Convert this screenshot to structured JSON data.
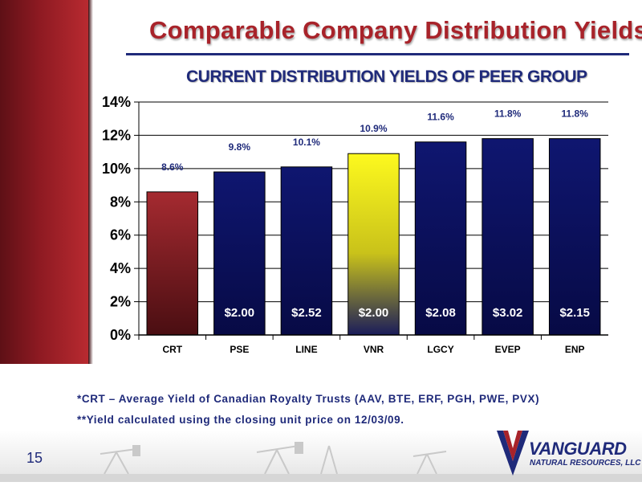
{
  "slide": {
    "title": "Comparable Company Distribution Yields",
    "page_number": "15",
    "footnotes": [
      "*CRT – Average Yield of Canadian Royalty Trusts (AAV, BTE, ERF, PGH, PWE, PVX)",
      "**Yield calculated using the closing unit price on 12/03/09."
    ]
  },
  "logo": {
    "name": "VANGUARD",
    "subtitle": "NATURAL RESOURCES, LLC"
  },
  "chart_data": {
    "type": "bar",
    "title": "CURRENT DISTRIBUTION YIELDS OF PEER GROUP",
    "xlabel": "",
    "ylabel": "",
    "categories": [
      "CRT",
      "PSE",
      "LINE",
      "VNR",
      "LGCY",
      "EVEP",
      "ENP"
    ],
    "values": [
      8.6,
      9.8,
      10.1,
      10.9,
      11.6,
      11.8,
      11.8
    ],
    "value_labels": [
      "8.6%",
      "9.8%",
      "10.1%",
      "10.9%",
      "11.6%",
      "11.8%",
      "11.8%"
    ],
    "distribution_labels": [
      "",
      "$2.00",
      "$2.52",
      "$2.00",
      "$2.08",
      "$3.02",
      "$2.15"
    ],
    "ylim": [
      0,
      14
    ],
    "yticks": [
      0,
      2,
      4,
      6,
      8,
      10,
      12,
      14
    ],
    "ytick_labels": [
      "0%",
      "2%",
      "4%",
      "6%",
      "8%",
      "10%",
      "12%",
      "14%"
    ],
    "grid": true,
    "legend": "none",
    "colors": {
      "CRT": "#8b1c24",
      "VNR": "#f2ee1c",
      "default": "#0f1670",
      "value_label": "#1f2a7a",
      "distribution_label": "#ffffff"
    }
  }
}
